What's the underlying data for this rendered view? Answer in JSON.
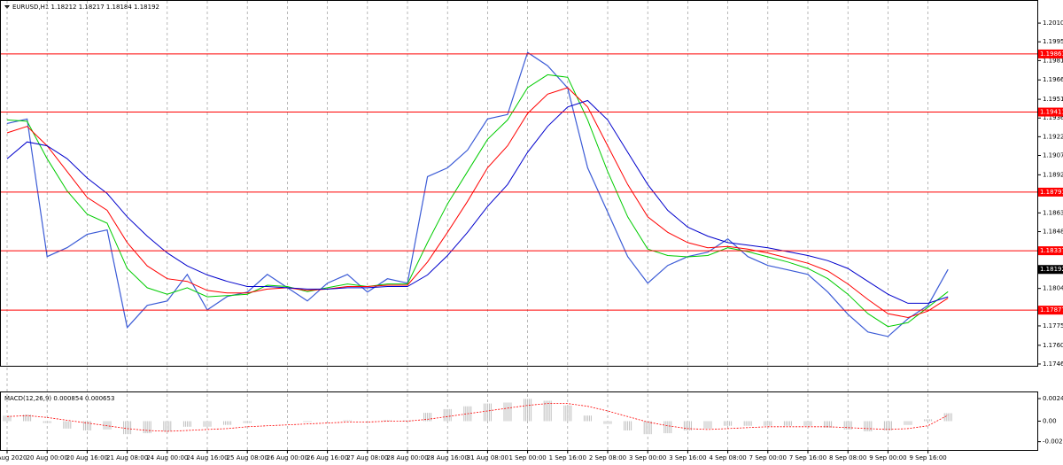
{
  "chart_data": [
    {
      "type": "line",
      "title": "EURUSD,H1  1.18212 1.18217 1.18184 1.18192",
      "categories": [
        "19 Aug 2020",
        null,
        "20 Aug 00:00",
        null,
        "20 Aug 16:00",
        null,
        "21 Aug 08:00",
        null,
        "24 Aug 00:00",
        null,
        "24 Aug 16:00",
        null,
        "25 Aug 08:00",
        null,
        "26 Aug 00:00",
        null,
        "26 Aug 16:00",
        null,
        "27 Aug 08:00",
        null,
        "28 Aug 00:00",
        null,
        "28 Aug 16:00",
        null,
        "31 Aug 08:00",
        null,
        "1 Sep 00:00",
        null,
        "1 Sep 16:00",
        null,
        "2 Sep 08:00",
        null,
        "3 Sep 00:00",
        null,
        "3 Sep 16:00",
        null,
        "4 Sep 08:00",
        null,
        "7 Sep 00:00",
        null,
        "7 Sep 16:00",
        null,
        "8 Sep 08:00",
        null,
        "9 Sep 00:00",
        null,
        "9 Sep 16:00",
        null
      ],
      "series": [
        {
          "color": "#3b5bd6",
          "values": [
            1.19323,
            1.19358,
            1.18292,
            1.18361,
            1.18464,
            1.18498,
            1.17742,
            1.17914,
            1.17948,
            1.18154,
            1.17879,
            1.17983,
            1.18017,
            1.18154,
            1.18051,
            1.17948,
            1.18086,
            1.18154,
            1.18017,
            1.1812,
            1.18086,
            1.18911,
            1.18979,
            1.19117,
            1.19358,
            1.19392,
            1.19873,
            1.1977,
            1.19598,
            1.18979,
            1.18636,
            1.18292,
            1.18086,
            1.18223,
            1.18292,
            1.18326,
            1.18429,
            1.18292,
            1.18223,
            1.18189,
            1.18154,
            1.18017,
            1.17845,
            1.17708,
            1.17673,
            1.17811,
            1.17914,
            1.18192
          ]
        },
        {
          "color": "#00cc00",
          "values": [
            1.1935,
            1.1934,
            1.1905,
            1.188,
            1.1862,
            1.1855,
            1.182,
            1.1805,
            1.18,
            1.1805,
            1.1798,
            1.1799,
            1.18,
            1.1807,
            1.1806,
            1.1802,
            1.1805,
            1.1808,
            1.1806,
            1.1808,
            1.1808,
            1.184,
            1.187,
            1.1895,
            1.192,
            1.1935,
            1.196,
            1.197,
            1.1968,
            1.1935,
            1.1895,
            1.186,
            1.1835,
            1.183,
            1.1829,
            1.183,
            1.1836,
            1.1833,
            1.1829,
            1.1825,
            1.182,
            1.1812,
            1.18,
            1.1785,
            1.1775,
            1.1778,
            1.179,
            1.1802
          ]
        },
        {
          "color": "#ff0000",
          "values": [
            1.1925,
            1.193,
            1.1915,
            1.1895,
            1.1875,
            1.1865,
            1.184,
            1.1822,
            1.1812,
            1.181,
            1.1803,
            1.1801,
            1.1801,
            1.1804,
            1.1805,
            1.1803,
            1.1804,
            1.1806,
            1.1806,
            1.1807,
            1.1807,
            1.1825,
            1.1848,
            1.1872,
            1.1898,
            1.1915,
            1.194,
            1.1955,
            1.196,
            1.1945,
            1.1915,
            1.1885,
            1.186,
            1.1848,
            1.184,
            1.1836,
            1.1837,
            1.1835,
            1.1832,
            1.1828,
            1.1824,
            1.1818,
            1.1808,
            1.1796,
            1.1785,
            1.1782,
            1.1787,
            1.1797
          ]
        },
        {
          "color": "#0000cc",
          "values": [
            1.1905,
            1.1918,
            1.1915,
            1.1905,
            1.189,
            1.1878,
            1.186,
            1.1845,
            1.1832,
            1.1822,
            1.1815,
            1.181,
            1.1806,
            1.1806,
            1.1805,
            1.1804,
            1.1804,
            1.1805,
            1.1805,
            1.1806,
            1.1806,
            1.1815,
            1.183,
            1.1848,
            1.1868,
            1.1885,
            1.191,
            1.193,
            1.1945,
            1.195,
            1.1935,
            1.191,
            1.1885,
            1.1865,
            1.1852,
            1.1845,
            1.184,
            1.1838,
            1.1836,
            1.1833,
            1.183,
            1.1826,
            1.182,
            1.181,
            1.18,
            1.1793,
            1.1793,
            1.1798
          ]
        }
      ],
      "ylim": [
        1.17446,
        1.20272
      ],
      "yticks": [
        {
          "value": 1.201,
          "label": "1.20100"
        },
        1.19955,
        {
          "value": 1.1981,
          "label": "1.19810"
        },
        {
          "value": 1.1966,
          "label": "1.19660"
        },
        {
          "value": 1.1951,
          "label": "1.19510"
        },
        1.19365,
        {
          "value": 1.1922,
          "label": "1.19220"
        },
        1.19075,
        1.18925,
        {
          "value": 1.1863,
          "label": "1.18630"
        },
        1.18485,
        1.18045,
        1.17755,
        1.17605,
        {
          "value": 1.1746,
          "label": "1.17460"
        }
      ],
      "levels": [
        1.19861,
        1.19411,
        1.18791,
        1.18337,
        1.17877
      ],
      "levels_color": "#ff0000",
      "last": 1.18192,
      "grid": true
    },
    {
      "type": "macd",
      "title": "MACD(12,26,9) 0.000854 0.000653",
      "series": [
        {
          "color": "#c0c0c0",
          "values": [
            0.0006,
            0.0007,
            -0.0002,
            -0.0008,
            -0.001,
            -0.0009,
            -0.0014,
            -0.0013,
            -0.0011,
            -0.0006,
            -0.0006,
            -0.0004,
            -0.0002,
            0.0,
            0.0,
            -0.0001,
            0.0,
            0.0001,
            0.0,
            0.0001,
            0.0001,
            0.0009,
            0.0013,
            0.0016,
            0.0019,
            0.002,
            0.0024,
            0.0022,
            0.0017,
            0.0006,
            -0.0003,
            -0.001,
            -0.0014,
            -0.0013,
            -0.001,
            -0.0008,
            -0.0005,
            -0.0005,
            -0.0005,
            -0.0005,
            -0.0005,
            -0.0007,
            -0.0009,
            -0.0011,
            -0.001,
            -0.0004,
            0.0002,
            0.000854
          ]
        },
        {
          "color": "#ff0000",
          "values": [
            0.0005,
            0.0006,
            0.0004,
            0.0001,
            -0.0002,
            -0.0005,
            -0.0008,
            -0.001,
            -0.0011,
            -0.001,
            -0.0009,
            -0.0008,
            -0.0006,
            -0.0005,
            -0.0004,
            -0.0003,
            -0.0002,
            -0.0001,
            -0.0001,
            0.0,
            0.0,
            0.0002,
            0.0005,
            0.0008,
            0.0011,
            0.0014,
            0.0017,
            0.0019,
            0.0019,
            0.0016,
            0.0011,
            0.0005,
            -0.0001,
            -0.0005,
            -0.0008,
            -0.0009,
            -0.0008,
            -0.0007,
            -0.0006,
            -0.0006,
            -0.0006,
            -0.0006,
            -0.0007,
            -0.0008,
            -0.0009,
            -0.0008,
            -0.0005,
            0.000653
          ]
        }
      ],
      "ylim": [
        -0.0031,
        0.0031
      ],
      "yticks": [
        0.002429,
        {
          "value": 0,
          "label": "0.00"
        },
        -0.002207
      ]
    }
  ]
}
